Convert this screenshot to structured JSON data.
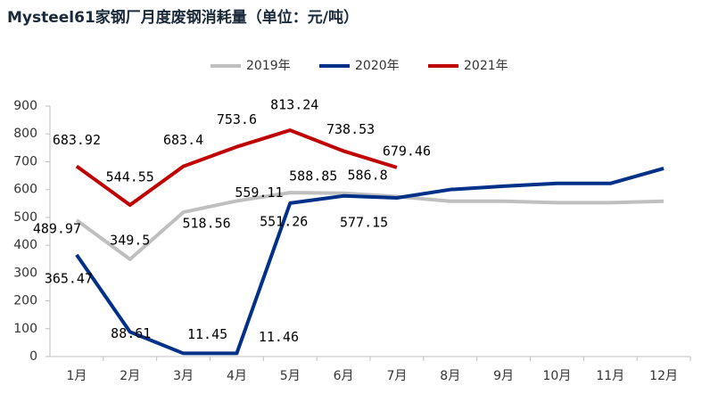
{
  "chart_data": {
    "type": "line",
    "title": "Mysteel61家钢厂月度废钢消耗量（单位：元/吨）",
    "categories": [
      "1月",
      "2月",
      "3月",
      "4月",
      "5月",
      "6月",
      "7月",
      "8月",
      "9月",
      "10月",
      "11月",
      "12月"
    ],
    "series": [
      {
        "name": "2019年",
        "color": "#bfbfbf",
        "values": [
          489.97,
          349.5,
          518.56,
          559.11,
          588.85,
          586.8,
          575,
          558,
          558,
          553,
          553,
          558
        ],
        "value_labels": [
          "489.97",
          "349.5",
          "518.56",
          "559.11",
          "588.85",
          "586.8",
          null,
          null,
          null,
          null,
          null,
          null
        ]
      },
      {
        "name": "2020年",
        "color": "#003087",
        "values": [
          365.47,
          88.61,
          11.45,
          11.46,
          551.26,
          577.15,
          570,
          600,
          612,
          622,
          622,
          676
        ],
        "value_labels": [
          "365.47",
          "88.61",
          "11.45",
          "11.46",
          "551.26",
          "577.15",
          null,
          null,
          null,
          null,
          null,
          null
        ]
      },
      {
        "name": "2021年",
        "color": "#c00000",
        "values": [
          683.92,
          544.55,
          683.4,
          753.6,
          813.24,
          738.53,
          679.46,
          null,
          null,
          null,
          null,
          null
        ],
        "value_labels": [
          "683.92",
          "544.55",
          "683.4",
          "753.6",
          "813.24",
          "738.53",
          "679.46",
          null,
          null,
          null,
          null,
          null
        ]
      }
    ],
    "ylim": [
      0,
      900
    ],
    "yticks": [
      0,
      100,
      200,
      300,
      400,
      500,
      600,
      700,
      800,
      900
    ],
    "legend": "top",
    "grid": false
  }
}
